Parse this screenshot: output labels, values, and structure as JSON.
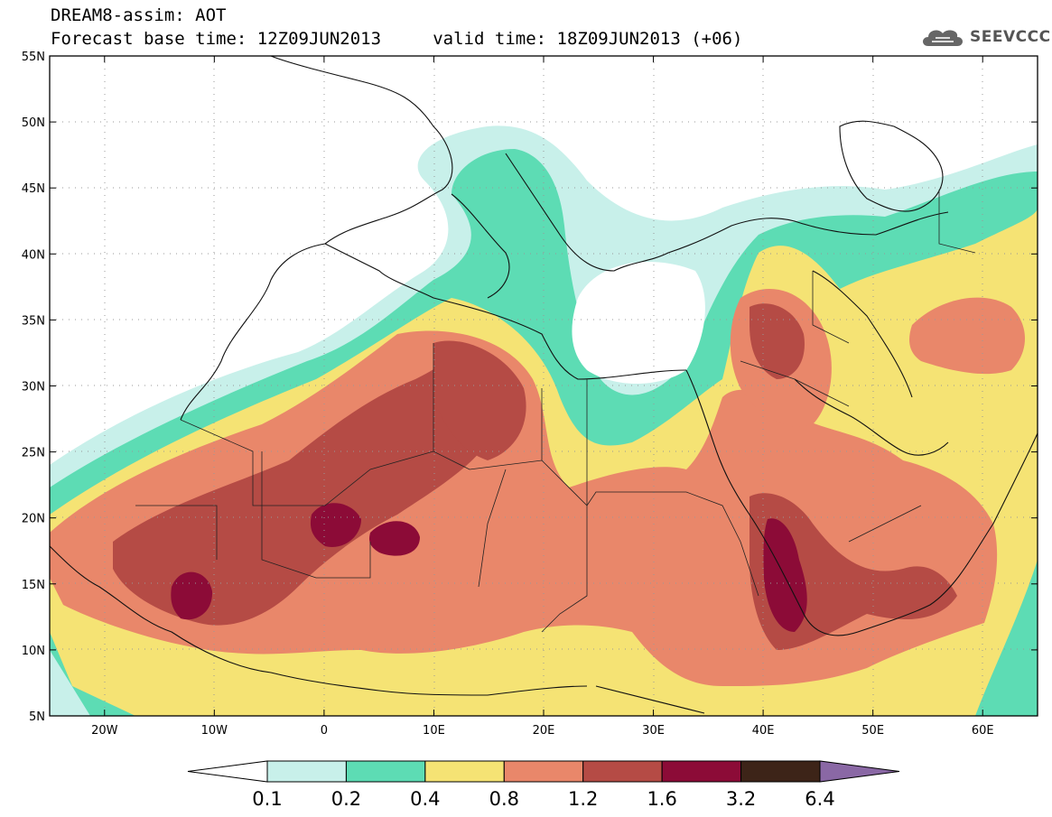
{
  "header": {
    "title_line1": "DREAM8-assim: AOT",
    "title_line2": "Forecast base time: 12Z09JUN2013     valid time: 18Z09JUN2013 (+06)"
  },
  "logo": {
    "text": "SEEVCCC",
    "icon": "cloud-logo-icon"
  },
  "axes": {
    "lat_labels": [
      "55N",
      "50N",
      "45N",
      "40N",
      "35N",
      "30N",
      "25N",
      "20N",
      "15N",
      "10N",
      "5N"
    ],
    "lon_labels": [
      "20W",
      "10W",
      "0",
      "10E",
      "20E",
      "30E",
      "40E",
      "50E",
      "60E"
    ],
    "lon_range": [
      -25,
      65
    ],
    "lat_range": [
      5,
      55
    ]
  },
  "colorbar": {
    "labels": [
      "0.1",
      "0.2",
      "0.4",
      "0.8",
      "1.2",
      "1.6",
      "3.2",
      "6.4"
    ],
    "colors": [
      "#ffffff",
      "#c8f0ea",
      "#5ddcb4",
      "#f5e374",
      "#e9876a",
      "#b54b45",
      "#8c0b37",
      "#3d2418",
      "#8a68a5"
    ]
  }
}
